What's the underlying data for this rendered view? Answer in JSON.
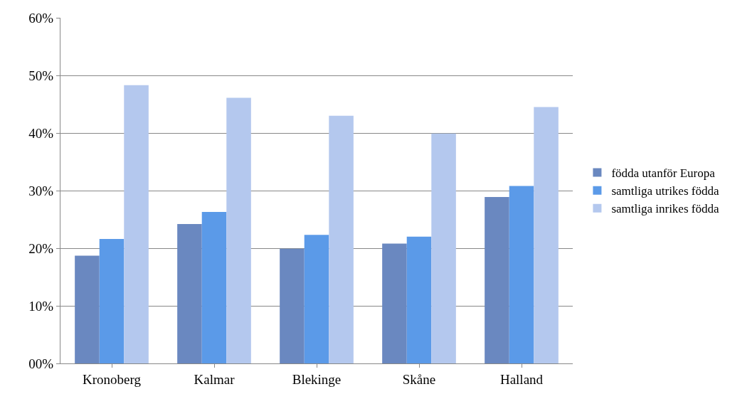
{
  "chart_data": {
    "type": "bar",
    "categories": [
      "Kronoberg",
      "Kalmar",
      "Blekinge",
      "Skåne",
      "Halland"
    ],
    "series": [
      {
        "name": "födda utanför Europa",
        "color": "#6a88c0",
        "values": [
          18.7,
          24.2,
          19.9,
          20.8,
          28.9
        ]
      },
      {
        "name": "samtliga utrikes födda",
        "color": "#5b9ae8",
        "values": [
          21.6,
          26.3,
          22.3,
          22.0,
          30.8
        ]
      },
      {
        "name": "samtliga inrikes födda",
        "color": "#b4c8ee",
        "values": [
          48.3,
          46.1,
          43.0,
          39.9,
          44.5
        ]
      }
    ],
    "ylim": [
      0,
      60
    ],
    "yticks": [
      {
        "value": 0,
        "label": "00%"
      },
      {
        "value": 10,
        "label": "10%"
      },
      {
        "value": 20,
        "label": "20%"
      },
      {
        "value": 30,
        "label": "30%"
      },
      {
        "value": 40,
        "label": "40%"
      },
      {
        "value": 50,
        "label": "50%"
      },
      {
        "value": 60,
        "label": "60%"
      }
    ],
    "grid": "y",
    "legend": "right"
  }
}
